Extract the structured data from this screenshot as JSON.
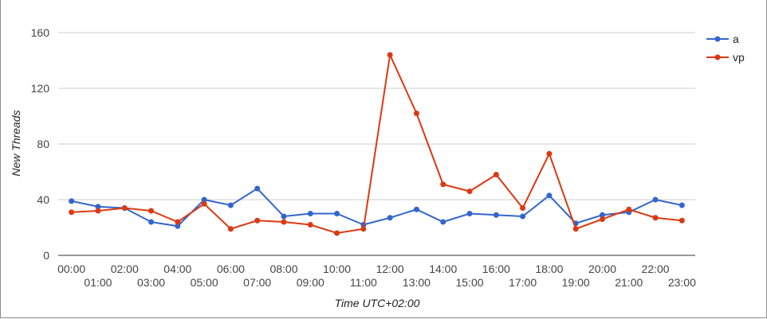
{
  "chart_data": {
    "type": "line",
    "xlabel": "Time UTC+02:00",
    "ylabel": "New Threads",
    "ylim": [
      0,
      160
    ],
    "yticks": [
      "0",
      "40",
      "80",
      "120",
      "160"
    ],
    "grid": true,
    "legend_position": "top-right",
    "categories": [
      "00:00",
      "01:00",
      "02:00",
      "03:00",
      "04:00",
      "05:00",
      "06:00",
      "07:00",
      "08:00",
      "09:00",
      "10:00",
      "11:00",
      "12:00",
      "13:00",
      "14:00",
      "15:00",
      "16:00",
      "17:00",
      "18:00",
      "19:00",
      "20:00",
      "21:00",
      "22:00",
      "23:00"
    ],
    "series": [
      {
        "name": "a",
        "color": "#3366cc",
        "values": [
          39,
          35,
          34,
          24,
          21,
          40,
          36,
          48,
          28,
          30,
          30,
          22,
          27,
          33,
          24,
          30,
          29,
          28,
          43,
          23,
          29,
          31,
          40,
          36
        ]
      },
      {
        "name": "vp",
        "color": "#dc3912",
        "values": [
          31,
          32,
          34,
          32,
          24,
          37,
          19,
          25,
          24,
          22,
          16,
          19,
          144,
          102,
          51,
          46,
          58,
          34,
          73,
          19,
          26,
          33,
          27,
          25
        ]
      }
    ]
  }
}
